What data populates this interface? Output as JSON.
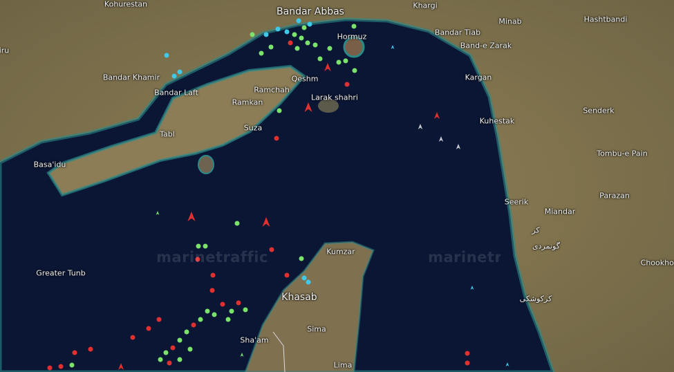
{
  "map": {
    "watermark": "marinetraffic",
    "colors": {
      "land": "#8a7a52",
      "water": "#0a1634",
      "shallow": "#2a8a8a",
      "ship_cargo": "#7be36b",
      "ship_tanker": "#e03030",
      "ship_passenger": "#3fc8e8",
      "ship_other": "#c8c8d0"
    },
    "places": [
      {
        "name": "Kohurestan"
      },
      {
        "name": "Bandar Abbas"
      },
      {
        "name": "Khargi"
      },
      {
        "name": "Minab"
      },
      {
        "name": "Hashtbandi"
      },
      {
        "name": "Hormuz"
      },
      {
        "name": "Bandar Tiab"
      },
      {
        "name": "Band-e Zarak"
      },
      {
        "name": "iru"
      },
      {
        "name": "Bandar Khamir"
      },
      {
        "name": "Bandar Laft"
      },
      {
        "name": "Qeshm"
      },
      {
        "name": "Ramchah"
      },
      {
        "name": "Ramkan"
      },
      {
        "name": "Larak shahri"
      },
      {
        "name": "Kargan"
      },
      {
        "name": "Kuhestak"
      },
      {
        "name": "Senderk"
      },
      {
        "name": "Suza"
      },
      {
        "name": "Tabl"
      },
      {
        "name": "Basa'idu"
      },
      {
        "name": "Tombu-e Pain"
      },
      {
        "name": "Parazan"
      },
      {
        "name": "Seerik"
      },
      {
        "name": "Miandar"
      },
      {
        "name": "کر"
      },
      {
        "name": "گونمردی"
      },
      {
        "name": "Greater Tunb"
      },
      {
        "name": "Kumzar"
      },
      {
        "name": "Chookhor"
      },
      {
        "name": "Khasab"
      },
      {
        "name": "کرکوشکی"
      },
      {
        "name": "Sima"
      },
      {
        "name": "Sha'am"
      },
      {
        "name": "Lima"
      }
    ]
  }
}
